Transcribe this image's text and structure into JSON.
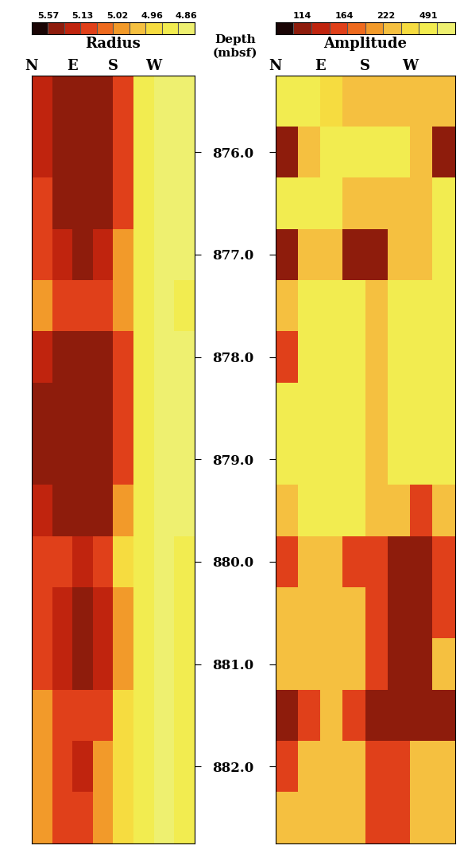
{
  "chart_data": [
    {
      "type": "heatmap",
      "title": "Radius",
      "ylabel": "Depth (mbsf)",
      "x": [
        22.5,
        67.5,
        112.5,
        157.5,
        202.5,
        247.5,
        292.5,
        337.5
      ],
      "xlim": [
        0,
        360
      ],
      "xticks": [
        {
          "value": 0,
          "label": "N"
        },
        {
          "value": 90,
          "label": "E"
        },
        {
          "value": 180,
          "label": "S"
        },
        {
          "value": 270,
          "label": "W"
        }
      ],
      "y": [
        875.5,
        876.0,
        876.5,
        877.0,
        877.5,
        878.0,
        878.5,
        879.0,
        879.5,
        880.0,
        880.5,
        881.0,
        881.5,
        882.0,
        882.5
      ],
      "ylim": [
        882.75,
        875.25
      ],
      "yticks": [
        {
          "value": 876,
          "label": "876.0"
        },
        {
          "value": 877,
          "label": "877.0"
        },
        {
          "value": 878,
          "label": "878.0"
        },
        {
          "value": 879,
          "label": "879.0"
        },
        {
          "value": 880,
          "label": "880.0"
        },
        {
          "value": 881,
          "label": "881.0"
        },
        {
          "value": 882,
          "label": "882.0"
        }
      ],
      "values": [
        [
          5.3,
          5.57,
          5.57,
          5.57,
          5.13,
          4.9,
          4.86,
          4.88
        ],
        [
          5.2,
          5.57,
          5.57,
          5.57,
          5.13,
          4.9,
          4.86,
          4.88
        ],
        [
          5.13,
          5.57,
          5.57,
          5.5,
          5.13,
          4.9,
          4.86,
          4.88
        ],
        [
          5.13,
          5.3,
          5.4,
          5.3,
          5.02,
          4.9,
          4.86,
          4.88
        ],
        [
          5.02,
          5.13,
          5.13,
          5.13,
          5.02,
          4.9,
          4.86,
          4.9
        ],
        [
          5.3,
          5.57,
          5.57,
          5.57,
          5.13,
          4.9,
          4.86,
          4.88
        ],
        [
          5.4,
          5.57,
          5.57,
          5.57,
          5.13,
          4.9,
          4.86,
          4.88
        ],
        [
          5.4,
          5.57,
          5.57,
          5.57,
          5.13,
          4.9,
          4.86,
          4.88
        ],
        [
          5.2,
          5.4,
          5.5,
          5.4,
          5.02,
          4.9,
          4.86,
          4.88
        ],
        [
          5.13,
          5.13,
          5.3,
          5.13,
          4.96,
          4.9,
          4.86,
          4.9
        ],
        [
          5.13,
          5.3,
          5.4,
          5.3,
          5.02,
          4.9,
          4.86,
          4.9
        ],
        [
          5.13,
          5.3,
          5.4,
          5.2,
          5.02,
          4.9,
          4.86,
          4.9
        ],
        [
          5.02,
          5.13,
          5.13,
          5.13,
          4.96,
          4.9,
          4.86,
          4.9
        ],
        [
          5.02,
          5.13,
          5.2,
          5.02,
          4.96,
          4.9,
          4.86,
          4.9
        ],
        [
          5.02,
          5.13,
          5.13,
          5.02,
          4.96,
          4.9,
          4.86,
          4.9
        ]
      ],
      "colorbar": {
        "ticks": [
          5.57,
          5.13,
          5.02,
          4.96,
          4.86
        ]
      }
    },
    {
      "type": "heatmap",
      "title": "Amplitude",
      "tick_labels": "x",
      "x": [
        22.5,
        67.5,
        112.5,
        157.5,
        202.5,
        247.5,
        292.5,
        337.5
      ],
      "xlim": [
        0,
        360
      ],
      "xticks": [
        {
          "value": 0,
          "label": "N"
        },
        {
          "value": 90,
          "label": "E"
        },
        {
          "value": 180,
          "label": "S"
        },
        {
          "value": 270,
          "label": "W"
        }
      ],
      "y": [
        875.5,
        876.0,
        876.5,
        877.0,
        877.5,
        878.0,
        878.5,
        879.0,
        879.5,
        880.0,
        880.5,
        881.0,
        881.5,
        882.0,
        882.5
      ],
      "ylim": [
        882.75,
        875.25
      ],
      "yticks": [
        876,
        877,
        878,
        879,
        880,
        881,
        882
      ],
      "values": [
        [
          491,
          491,
          400,
          300,
          222,
          300,
          222,
          300
        ],
        [
          114,
          300,
          491,
          491,
          491,
          491,
          222,
          114
        ],
        [
          491,
          491,
          491,
          300,
          222,
          222,
          300,
          491
        ],
        [
          114,
          222,
          300,
          114,
          114,
          300,
          222,
          491
        ],
        [
          300,
          491,
          491,
          491,
          300,
          491,
          491,
          491
        ],
        [
          164,
          491,
          491,
          491,
          300,
          491,
          491,
          491
        ],
        [
          491,
          491,
          491,
          491,
          300,
          491,
          491,
          491
        ],
        [
          491,
          491,
          491,
          491,
          300,
          491,
          491,
          491
        ],
        [
          222,
          491,
          491,
          491,
          300,
          222,
          164,
          222
        ],
        [
          164,
          300,
          222,
          164,
          164,
          114,
          114,
          164
        ],
        [
          222,
          222,
          300,
          222,
          164,
          114,
          114,
          164
        ],
        [
          222,
          300,
          300,
          222,
          164,
          114,
          114,
          222
        ],
        [
          114,
          164,
          222,
          164,
          114,
          114,
          114,
          114
        ],
        [
          164,
          222,
          300,
          222,
          164,
          164,
          222,
          222
        ],
        [
          222,
          300,
          300,
          222,
          164,
          164,
          222,
          300
        ]
      ],
      "colorbar": {
        "ticks": [
          114,
          164,
          222,
          491
        ]
      }
    }
  ]
}
